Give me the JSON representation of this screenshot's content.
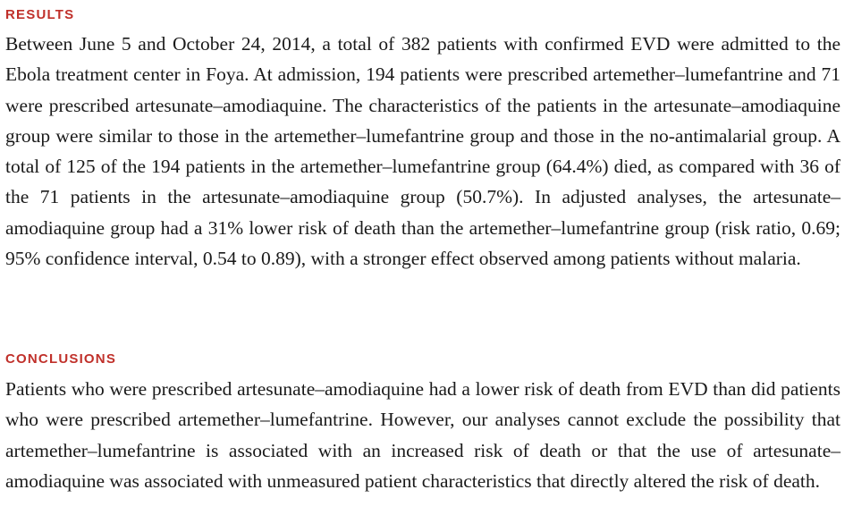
{
  "results": {
    "heading": "RESULTS",
    "text": "Between June 5 and October 24, 2014, a total of 382 patients with confirmed EVD were admitted to the Ebola treatment center in Foya. At admission, 194 patients were prescribed artemether–lumefantrine and 71 were prescribed artesunate–amodiaquine. The characteristics of the patients in the artesunate–amodiaquine group were similar to those in the artemether–lumefantrine group and those in the no-antimalarial group. A total of 125 of the 194 patients in the artemether–lumefantrine group (64.4%) died, as compared with 36 of the 71 patients in the artesunate–amodiaquine group (50.7%). In adjusted analyses, the artesunate–amodiaquine group had a 31% lower risk of death than the artemether–lumefantrine group (risk ratio, 0.69; 95% confidence interval, 0.54 to 0.89), with a stronger effect observed among patients without malaria."
  },
  "conclusions": {
    "heading": "CONCLUSIONS",
    "text": "Patients who were prescribed artesunate–amodiaquine had a lower risk of death from EVD than did patients who were prescribed artemether–lumefantrine. However, our analyses cannot exclude the possibility that artemether–lumefantrine is associated with an increased risk of death or that the use of artesunate–amodiaquine was associated with unmeasured patient characteristics that directly altered the risk of death."
  },
  "colors": {
    "heading": "#c0302a",
    "body_text": "#1a1a1a",
    "background": "#ffffff"
  }
}
